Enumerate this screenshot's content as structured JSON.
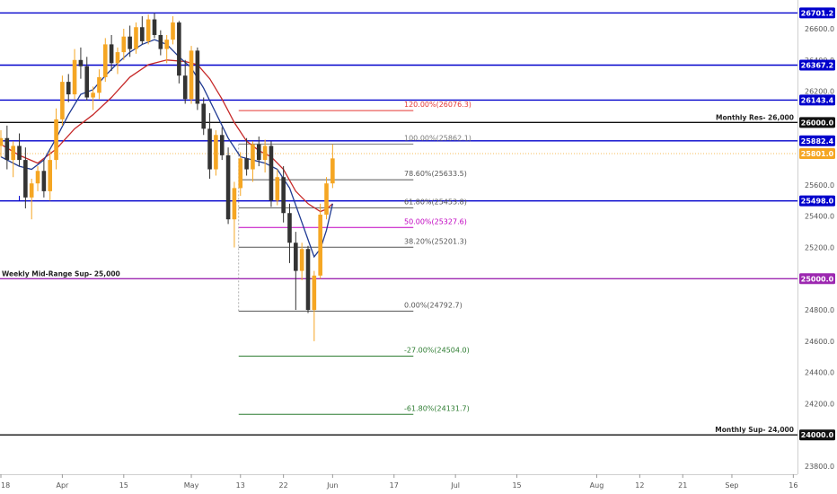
{
  "chart_data": {
    "type": "candlestick",
    "price_axis": {
      "range": [
        23700,
        26780
      ],
      "ticks": [
        23800,
        24000,
        24200,
        24400,
        24600,
        24800,
        25000,
        25200,
        25400,
        25600,
        25800,
        26000,
        26200,
        26400,
        26600
      ],
      "tick_labels": [
        "23800.0",
        "24000.0",
        "24200.0",
        "24400.0",
        "24600.0",
        "24800.0",
        "25000.0",
        "25200.0",
        "25400.0",
        "25600.0",
        "25800.0",
        "26000.0",
        "26200.0",
        "26400.0",
        "26600.0"
      ]
    },
    "time_axis": {
      "range": [
        0,
        130
      ],
      "ticks": [
        {
          "label": "18",
          "i": 0
        },
        {
          "label": "Apr",
          "i": 10
        },
        {
          "label": "15",
          "i": 20
        },
        {
          "label": "May",
          "i": 31
        },
        {
          "label": "13",
          "i": 39
        },
        {
          "label": "22",
          "i": 46
        },
        {
          "label": "Jun",
          "i": 54
        },
        {
          "label": "17",
          "i": 64
        },
        {
          "label": "Jul",
          "i": 74
        },
        {
          "label": "15",
          "i": 84
        },
        {
          "label": "Aug",
          "i": 97
        },
        {
          "label": "12",
          "i": 104
        },
        {
          "label": "21",
          "i": 111
        },
        {
          "label": "Sep",
          "i": 119
        },
        {
          "label": "16",
          "i": 129
        }
      ]
    },
    "colors": {
      "up": "#f5a623",
      "down": "#333333",
      "ema_fast": "#1f3a93",
      "ema_slow": "#c62828"
    },
    "candles": [
      [
        25850,
        25950,
        25780,
        25900
      ],
      [
        25900,
        25980,
        25700,
        25760
      ],
      [
        25760,
        25880,
        25650,
        25850
      ],
      [
        25850,
        25930,
        25720,
        25760
      ],
      [
        25760,
        25840,
        25450,
        25520
      ],
      [
        25520,
        25640,
        25380,
        25610
      ],
      [
        25610,
        25720,
        25560,
        25690
      ],
      [
        25690,
        25760,
        25520,
        25560
      ],
      [
        25560,
        25820,
        25500,
        25760
      ],
      [
        25760,
        26090,
        25700,
        26020
      ],
      [
        26020,
        26300,
        25980,
        26260
      ],
      [
        26260,
        26310,
        26130,
        26180
      ],
      [
        26180,
        26470,
        26150,
        26400
      ],
      [
        26400,
        26480,
        26280,
        26360
      ],
      [
        26360,
        26420,
        26140,
        26160
      ],
      [
        26160,
        26230,
        26080,
        26190
      ],
      [
        26190,
        26340,
        26150,
        26290
      ],
      [
        26290,
        26540,
        26260,
        26500
      ],
      [
        26500,
        26560,
        26330,
        26380
      ],
      [
        26380,
        26480,
        26310,
        26450
      ],
      [
        26450,
        26600,
        26400,
        26550
      ],
      [
        26550,
        26620,
        26420,
        26470
      ],
      [
        26470,
        26640,
        26440,
        26610
      ],
      [
        26610,
        26680,
        26500,
        26520
      ],
      [
        26520,
        26690,
        26500,
        26660
      ],
      [
        26660,
        26700,
        26540,
        26560
      ],
      [
        26560,
        26590,
        26430,
        26470
      ],
      [
        26470,
        26560,
        26380,
        26530
      ],
      [
        26530,
        26680,
        26500,
        26640
      ],
      [
        26640,
        26650,
        26250,
        26300
      ],
      [
        26300,
        26400,
        26120,
        26150
      ],
      [
        26150,
        26490,
        26120,
        26460
      ],
      [
        26460,
        26480,
        26080,
        26120
      ],
      [
        26120,
        26160,
        25920,
        25960
      ],
      [
        25960,
        26060,
        25640,
        25700
      ],
      [
        25700,
        25950,
        25660,
        25920
      ],
      [
        25920,
        25970,
        25760,
        25790
      ],
      [
        25790,
        25840,
        25350,
        25380
      ],
      [
        25380,
        25620,
        25200,
        25580
      ],
      [
        25580,
        25810,
        25530,
        25770
      ],
      [
        25770,
        25900,
        25660,
        25700
      ],
      [
        25700,
        25880,
        25620,
        25860
      ],
      [
        25860,
        25910,
        25720,
        25760
      ],
      [
        25760,
        25890,
        25680,
        25850
      ],
      [
        25850,
        25880,
        25460,
        25500
      ],
      [
        25500,
        25700,
        25470,
        25650
      ],
      [
        25650,
        25720,
        25360,
        25420
      ],
      [
        25420,
        25480,
        25100,
        25230
      ],
      [
        25230,
        25300,
        24800,
        25050
      ],
      [
        25050,
        25230,
        24990,
        25190
      ],
      [
        25190,
        25210,
        24780,
        24800
      ],
      [
        24800,
        25050,
        24600,
        25020
      ],
      [
        25020,
        25480,
        25000,
        25410
      ],
      [
        25410,
        25650,
        25380,
        25610
      ],
      [
        25610,
        25860,
        25580,
        25770
      ]
    ],
    "ema_fast": [
      [
        0,
        25780
      ],
      [
        3,
        25720
      ],
      [
        5,
        25700
      ],
      [
        7,
        25760
      ],
      [
        9,
        25900
      ],
      [
        11,
        26050
      ],
      [
        13,
        26180
      ],
      [
        15,
        26210
      ],
      [
        17,
        26300
      ],
      [
        19,
        26380
      ],
      [
        21,
        26450
      ],
      [
        23,
        26500
      ],
      [
        25,
        26530
      ],
      [
        27,
        26500
      ],
      [
        29,
        26420
      ],
      [
        31,
        26350
      ],
      [
        33,
        26220
      ],
      [
        35,
        26060
      ],
      [
        37,
        25900
      ],
      [
        39,
        25780
      ],
      [
        41,
        25760
      ],
      [
        43,
        25740
      ],
      [
        45,
        25700
      ],
      [
        47,
        25580
      ],
      [
        49,
        25360
      ],
      [
        51,
        25140
      ],
      [
        52,
        25190
      ],
      [
        53,
        25310
      ],
      [
        54,
        25480
      ]
    ],
    "ema_slow": [
      [
        0,
        25860
      ],
      [
        3,
        25790
      ],
      [
        6,
        25740
      ],
      [
        9,
        25830
      ],
      [
        12,
        25960
      ],
      [
        15,
        26050
      ],
      [
        18,
        26160
      ],
      [
        21,
        26290
      ],
      [
        24,
        26370
      ],
      [
        27,
        26400
      ],
      [
        30,
        26390
      ],
      [
        32,
        26370
      ],
      [
        34,
        26280
      ],
      [
        36,
        26150
      ],
      [
        38,
        26000
      ],
      [
        40,
        25880
      ],
      [
        42,
        25820
      ],
      [
        44,
        25780
      ],
      [
        46,
        25700
      ],
      [
        48,
        25560
      ],
      [
        50,
        25480
      ],
      [
        52,
        25430
      ],
      [
        53,
        25445
      ],
      [
        54,
        25480
      ]
    ],
    "horizontal_levels": [
      {
        "value": 26701.2,
        "label": "26701.2",
        "text": "",
        "color": "#0000cc",
        "width": 1.4
      },
      {
        "value": 26367.2,
        "label": "26367.2",
        "text": "",
        "color": "#0000cc",
        "width": 1.4
      },
      {
        "value": 26143.4,
        "label": "26143.4",
        "text": "",
        "color": "#0000cc",
        "width": 1.4
      },
      {
        "value": 26000.0,
        "label": "26000.0",
        "text": "Monthly Res- 26,000",
        "color": "#111111",
        "width": 1.4
      },
      {
        "value": 25882.4,
        "label": "25882.4",
        "text": "",
        "color": "#0000cc",
        "width": 1.4
      },
      {
        "value": 25498.0,
        "label": "25498.0",
        "text": "",
        "color": "#0000cc",
        "width": 1.4
      },
      {
        "value": 25000.0,
        "label": "25000.0",
        "text": "Weekly Mid-Range Sup- 25,000",
        "color": "#9c27b0",
        "width": 1.4
      },
      {
        "value": 24000.0,
        "label": "24000.0",
        "text": "Monthly Sup- 24,000",
        "color": "#111111",
        "width": 1.4
      }
    ],
    "last_price": {
      "value": 25801.0,
      "label": "25801.0",
      "color": "#f5a623"
    },
    "fib_levels": [
      {
        "ratio": "120.00%",
        "value": 26076.3,
        "label": "120.00%(26076.3)",
        "color": "#e53935"
      },
      {
        "ratio": "100.00%",
        "value": 25862.1,
        "label": "100.00%(25862.1)",
        "color": "#777777"
      },
      {
        "ratio": "78.60%",
        "value": 25633.5,
        "label": "78.60%(25633.5)",
        "color": "#555555"
      },
      {
        "ratio": "61.80%",
        "value": 25453.8,
        "label": "61.80%(25453.8)",
        "color": "#555555"
      },
      {
        "ratio": "50.00%",
        "value": 25327.6,
        "label": "50.00%(25327.6)",
        "color": "#c000c0"
      },
      {
        "ratio": "38.20%",
        "value": 25201.3,
        "label": "38.20%(25201.3)",
        "color": "#555555"
      },
      {
        "ratio": "0.00%",
        "value": 24792.7,
        "label": "0.00%(24792.7)",
        "color": "#555555"
      },
      {
        "ratio": "-27.00%",
        "value": 24504.0,
        "label": "-27.00%(24504.0)",
        "color": "#2e7d32"
      },
      {
        "ratio": "-61.80%",
        "value": 24131.7,
        "label": "-61.80%(24131.7)",
        "color": "#2e7d32"
      }
    ],
    "fib_span": [
      39,
      67
    ],
    "grid": false,
    "legend": "none"
  }
}
